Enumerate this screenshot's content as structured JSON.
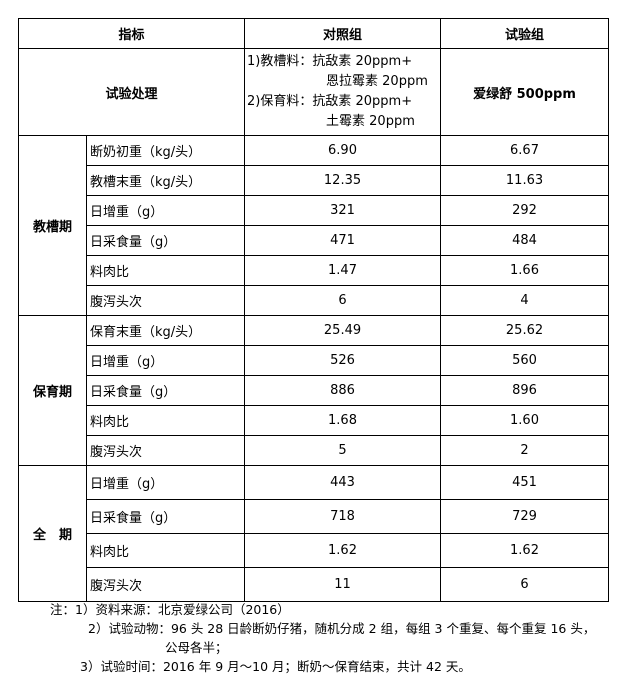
{
  "header": {
    "indicator": "指标",
    "control": "对照组",
    "test": "试验组"
  },
  "treatment": {
    "label": "试验处理",
    "control_lines": [
      "1)教槽料：抗敌素 20ppm+",
      "恩拉霉素 20ppm",
      "2)保育料：抗敌素 20ppm+",
      "土霉素 20ppm"
    ],
    "test": "爱绿舒 500ppm"
  },
  "groups": [
    {
      "name": "教槽期",
      "rows": [
        {
          "indicator": "断奶初重（kg/头）",
          "control": "6.90",
          "test": "6.67"
        },
        {
          "indicator": "教槽末重（kg/头）",
          "control": "12.35",
          "test": "11.63"
        },
        {
          "indicator": "日增重（g）",
          "control": "321",
          "test": "292"
        },
        {
          "indicator": "日采食量（g）",
          "control": "471",
          "test": "484"
        },
        {
          "indicator": "料肉比",
          "control": "1.47",
          "test": "1.66"
        },
        {
          "indicator": "腹泻头次",
          "control": "6",
          "test": "4"
        }
      ]
    },
    {
      "name": "保育期",
      "rows": [
        {
          "indicator": "保育末重（kg/头）",
          "control": "25.49",
          "test": "25.62"
        },
        {
          "indicator": "日增重（g）",
          "control": "526",
          "test": "560"
        },
        {
          "indicator": "日采食量（g）",
          "control": "886",
          "test": "896"
        },
        {
          "indicator": "料肉比",
          "control": "1.68",
          "test": "1.60"
        },
        {
          "indicator": "腹泻头次",
          "control": "5",
          "test": "2"
        }
      ]
    },
    {
      "name": "全　期",
      "rows": [
        {
          "indicator": "日增重（g）",
          "control": "443",
          "test": "451"
        },
        {
          "indicator": "日采食量（g）",
          "control": "718",
          "test": "729"
        },
        {
          "indicator": "料肉比",
          "control": "1.62",
          "test": "1.62"
        },
        {
          "indicator": "腹泻头次",
          "control": "11",
          "test": "6"
        }
      ]
    }
  ],
  "notes": [
    "注：1）资料来源：北京爱绿公司（2016）",
    "2）试验动物：96 头 28 日龄断奶仔猪，随机分成 2 组，每组 3 个重复、每个重复 16 头，",
    "公母各半；",
    "3）试验时间：2016 年 9 月～10 月；断奶～保育结束，共计 42 天。"
  ]
}
